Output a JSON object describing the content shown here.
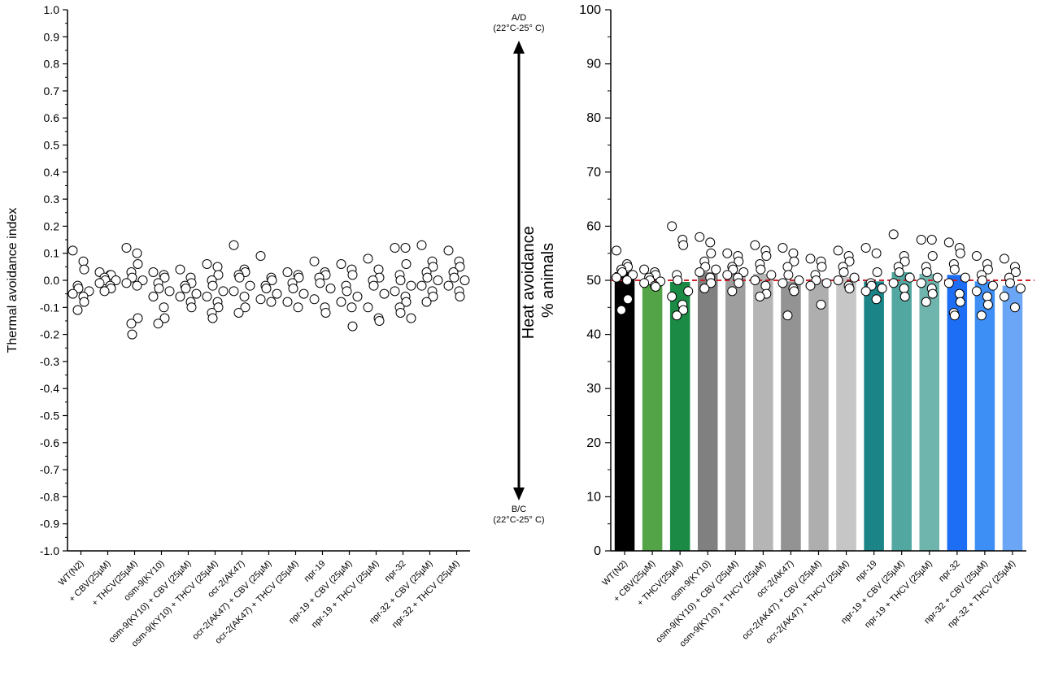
{
  "chart_data": [
    {
      "type": "scatter",
      "title": "",
      "xlabel": "",
      "ylabel": "Thermal avoidance index",
      "ylim": [
        -1.0,
        1.0
      ],
      "yticks": [
        "1.0",
        "0.9",
        "0.8",
        "0.7",
        "0.6",
        "0.5",
        "0.4",
        "0.3",
        "0.2",
        "0.1",
        "0.0",
        "-0.1",
        "-0.2",
        "-0.3",
        "-0.4",
        "-0.5",
        "-0.6",
        "-0.7",
        "-0.8",
        "-0.9",
        "-1.0"
      ],
      "categories": [
        "WT(N2)",
        "+ CBV(25µM)",
        "+ THCV(25µM)",
        "osm-9(KY10)",
        "osm-9(KY10) + CBV (25µM)",
        "osm-9(KY10) + THCV (25µM)",
        "ocr-2(AK47)",
        "ocr-2(AK47) + CBV (25µM)",
        "ocr-2(AK47) + THCV (25µM)",
        "npr-19",
        "npr-19 + CBV (25µM)",
        "npr-19 + THCV (25µM)",
        "npr-32",
        "npr-32 + CBV (25µM)",
        "npr-32 + THCV (25µM)"
      ],
      "points": [
        [
          0.11,
          0.07,
          0.04,
          -0.02,
          -0.03,
          -0.04,
          -0.05,
          -0.06,
          -0.08,
          -0.11
        ],
        [
          0.03,
          0.02,
          0.02,
          0.01,
          0.0,
          0.0,
          -0.01,
          -0.02,
          -0.03,
          -0.04
        ],
        [
          0.12,
          0.1,
          0.06,
          0.03,
          0.01,
          0.0,
          -0.01,
          -0.02,
          -0.14,
          -0.16,
          -0.2
        ],
        [
          0.03,
          0.02,
          0.01,
          -0.01,
          -0.03,
          -0.04,
          -0.06,
          -0.1,
          -0.14,
          -0.16
        ],
        [
          0.04,
          0.01,
          -0.01,
          -0.02,
          -0.03,
          -0.05,
          -0.06,
          -0.08,
          -0.1
        ],
        [
          0.06,
          0.05,
          0.02,
          0.0,
          -0.02,
          -0.04,
          -0.06,
          -0.08,
          -0.1,
          -0.12,
          -0.14
        ],
        [
          0.13,
          0.04,
          0.03,
          0.02,
          0.01,
          -0.02,
          -0.04,
          -0.06,
          -0.1,
          -0.12
        ],
        [
          0.09,
          0.01,
          0.0,
          -0.02,
          -0.03,
          -0.05,
          -0.07,
          -0.08
        ],
        [
          0.03,
          0.02,
          0.01,
          -0.01,
          -0.03,
          -0.05,
          -0.08,
          -0.1
        ],
        [
          0.07,
          0.03,
          0.02,
          0.01,
          -0.01,
          -0.03,
          -0.07,
          -0.1,
          -0.12
        ],
        [
          0.06,
          0.04,
          0.02,
          -0.02,
          -0.04,
          -0.06,
          -0.08,
          -0.1,
          -0.17
        ],
        [
          0.08,
          0.04,
          0.01,
          0.0,
          -0.02,
          -0.05,
          -0.1,
          -0.14,
          -0.15
        ],
        [
          0.12,
          0.12,
          0.06,
          0.02,
          0.0,
          -0.02,
          -0.04,
          -0.06,
          -0.08,
          -0.1,
          -0.12,
          -0.14
        ],
        [
          0.13,
          0.07,
          0.05,
          0.03,
          0.01,
          0.0,
          -0.02,
          -0.04,
          -0.06,
          -0.08
        ],
        [
          0.11,
          0.07,
          0.05,
          0.03,
          0.01,
          0.0,
          -0.02,
          -0.04,
          -0.06
        ]
      ]
    },
    {
      "type": "bar",
      "title": "",
      "xlabel": "",
      "ylabel": "Heat avoidance\n% animals",
      "ylim": [
        0,
        100
      ],
      "yticks": [
        "100",
        "90",
        "80",
        "70",
        "60",
        "50",
        "40",
        "30",
        "20",
        "10",
        "0"
      ],
      "reference_line": 50,
      "reference_color": "#d0212a",
      "categories": [
        "WT(N2)",
        "+ CBV(25µM)",
        "+ THCV(25µM)",
        "osm-9(KY10)",
        "osm-9(KY10) + CBV (25µM)",
        "osm-9(KY10) + THCV (25µM)",
        "ocr-2(AK47)",
        "ocr-2(AK47) + CBV (25µM)",
        "ocr-2(AK47) + THCV (25µM)",
        "npr-19",
        "npr-19 + CBV (25µM)",
        "npr-19 + THCV (25µM)",
        "npr-32",
        "npr-32 + CBV (25µM)",
        "npr-32 + THCV (25µM)"
      ],
      "values": [
        51.5,
        50.3,
        49.7,
        51.5,
        51.3,
        51.2,
        49.8,
        50.2,
        50.6,
        49.8,
        51.5,
        51.2,
        51.0,
        49.8,
        49.0
      ],
      "colors": [
        "#000000",
        "#53a446",
        "#1b8a44",
        "#808080",
        "#9e9e9e",
        "#b5b5b5",
        "#939393",
        "#aeaeae",
        "#c6c6c6",
        "#1a8486",
        "#52a8a0",
        "#6fb5ae",
        "#1e6ef5",
        "#3e8ff5",
        "#6aa6f5"
      ],
      "points": [
        [
          55.5,
          53.0,
          52.5,
          52.0,
          51.5,
          51.0,
          50.5,
          50.0,
          46.5,
          44.5
        ],
        [
          52.0,
          51.5,
          51.0,
          50.5,
          50.0,
          49.8,
          49.5,
          49.0,
          48.8
        ],
        [
          60.0,
          57.5,
          56.5,
          51.0,
          50.0,
          48.0,
          47.0,
          45.5,
          44.5,
          43.5
        ],
        [
          58.0,
          57.0,
          55.0,
          53.5,
          52.5,
          52.0,
          51.5,
          50.5,
          49.5,
          48.5
        ],
        [
          55.0,
          54.5,
          53.5,
          52.5,
          52.0,
          51.5,
          51.0,
          50.5,
          49.5,
          48.0
        ],
        [
          56.5,
          55.5,
          54.5,
          53.0,
          52.0,
          51.0,
          50.0,
          49.0,
          47.5,
          47.0
        ],
        [
          56.0,
          55.0,
          53.5,
          52.5,
          51.0,
          50.0,
          49.5,
          48.5,
          48.0,
          43.5
        ],
        [
          54.0,
          53.5,
          52.5,
          51.0,
          50.0,
          49.5,
          49.0,
          45.5
        ],
        [
          55.5,
          54.5,
          53.5,
          52.5,
          51.5,
          50.5,
          50.0,
          49.0,
          48.5
        ],
        [
          56.0,
          55.0,
          51.5,
          49.5,
          49.0,
          48.5,
          48.0,
          46.5
        ],
        [
          58.5,
          54.5,
          53.5,
          52.5,
          51.5,
          50.5,
          49.5,
          48.5,
          47.0
        ],
        [
          57.5,
          57.5,
          54.5,
          52.5,
          51.5,
          50.5,
          49.5,
          48.5,
          47.5,
          46.0
        ],
        [
          57.0,
          56.0,
          55.0,
          53.0,
          52.0,
          50.5,
          49.5,
          47.5,
          46.0,
          44.0,
          43.5
        ],
        [
          54.5,
          53.0,
          52.0,
          51.0,
          50.0,
          49.0,
          48.0,
          47.0,
          45.5,
          43.5
        ],
        [
          54.0,
          52.5,
          51.5,
          50.5,
          49.5,
          48.5,
          47.0,
          45.0
        ]
      ]
    }
  ],
  "arrow": {
    "top_label": "A/D",
    "top_sub": "(22°C-25° C)",
    "bottom_label": "B/C",
    "bottom_sub": "(22°C-25° C)"
  }
}
